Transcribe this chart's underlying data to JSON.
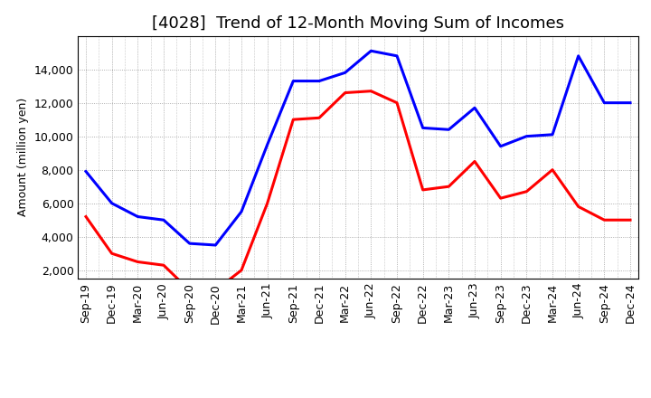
{
  "title": "[4028]  Trend of 12-Month Moving Sum of Incomes",
  "ylabel": "Amount (million yen)",
  "x_labels": [
    "Sep-19",
    "Dec-19",
    "Mar-20",
    "Jun-20",
    "Sep-20",
    "Dec-20",
    "Mar-21",
    "Jun-21",
    "Sep-21",
    "Dec-21",
    "Mar-22",
    "Jun-22",
    "Sep-22",
    "Dec-22",
    "Mar-23",
    "Jun-23",
    "Sep-23",
    "Dec-23",
    "Mar-24",
    "Jun-24",
    "Sep-24",
    "Dec-24"
  ],
  "ordinary_income": [
    7900,
    6000,
    5200,
    5000,
    3600,
    3500,
    5500,
    9500,
    13300,
    13300,
    13800,
    15100,
    14800,
    10500,
    10400,
    11700,
    9400,
    10000,
    10100,
    14800,
    12000,
    12000
  ],
  "net_income": [
    5200,
    3000,
    2500,
    2300,
    800,
    800,
    2000,
    6000,
    11000,
    11100,
    12600,
    12700,
    12000,
    6800,
    7000,
    8500,
    6300,
    6700,
    8000,
    5800,
    5000,
    5000
  ],
  "ordinary_color": "#0000FF",
  "net_color": "#FF0000",
  "background_color": "#FFFFFF",
  "plot_bg_color": "#FFFFFF",
  "grid_color": "#999999",
  "ylim": [
    1500,
    16000
  ],
  "yticks": [
    2000,
    4000,
    6000,
    8000,
    10000,
    12000,
    14000
  ],
  "title_fontsize": 13,
  "axis_fontsize": 9,
  "legend_fontsize": 10,
  "linewidth": 2.2
}
